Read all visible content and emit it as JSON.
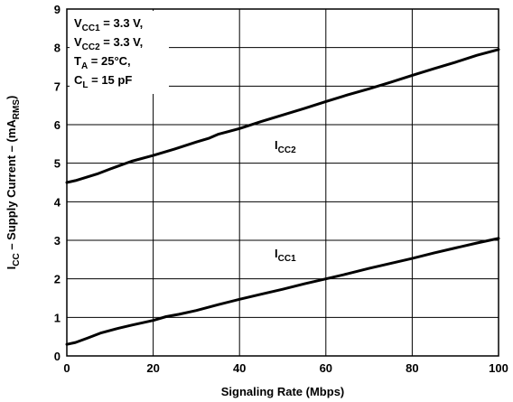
{
  "chart_data": {
    "type": "line",
    "xlabel": "Signaling Rate (Mbps)",
    "ylabel": {
      "main": "I",
      "sub": "CC",
      "rest": " – Supply Current – (mA",
      "unit_sub": "RMS",
      "close": ")"
    },
    "xlim": [
      0,
      100
    ],
    "ylim": [
      0,
      9
    ],
    "xticks": [
      "0",
      "20",
      "40",
      "60",
      "80",
      "100"
    ],
    "yticks": [
      "0",
      "1",
      "2",
      "3",
      "4",
      "5",
      "6",
      "7",
      "8",
      "9"
    ],
    "grid": true,
    "conditions": [
      {
        "main": "V",
        "sub": "CC1",
        "rest": " = 3.3 V,"
      },
      {
        "main": "V",
        "sub": "CC2",
        "rest": " = 3.3 V,"
      },
      {
        "main": "T",
        "sub": "A",
        "rest": " = 25°C,"
      },
      {
        "main": "C",
        "sub": "L",
        "rest": "  = 15 pF"
      }
    ],
    "series": [
      {
        "name": "ICC2",
        "label_main": "I",
        "label_sub": "CC2",
        "x": [
          0,
          2,
          7,
          10,
          15,
          20,
          25,
          30,
          33,
          35,
          40,
          45,
          50,
          55,
          60,
          65,
          70,
          75,
          80,
          85,
          90,
          95,
          100
        ],
        "y": [
          4.5,
          4.55,
          4.72,
          4.85,
          5.05,
          5.2,
          5.37,
          5.55,
          5.65,
          5.75,
          5.9,
          6.08,
          6.25,
          6.42,
          6.6,
          6.77,
          6.93,
          7.1,
          7.28,
          7.45,
          7.62,
          7.8,
          7.95
        ]
      },
      {
        "name": "ICC1",
        "label_main": "I",
        "label_sub": "CC1",
        "x": [
          0,
          2,
          5,
          8,
          12,
          15,
          20,
          23,
          26,
          30,
          35,
          40,
          45,
          50,
          55,
          60,
          65,
          70,
          75,
          80,
          85,
          90,
          95,
          100
        ],
        "y": [
          0.3,
          0.35,
          0.47,
          0.6,
          0.72,
          0.8,
          0.92,
          1.02,
          1.08,
          1.18,
          1.33,
          1.47,
          1.6,
          1.73,
          1.87,
          2.0,
          2.13,
          2.27,
          2.4,
          2.53,
          2.67,
          2.8,
          2.93,
          3.05
        ]
      }
    ]
  }
}
